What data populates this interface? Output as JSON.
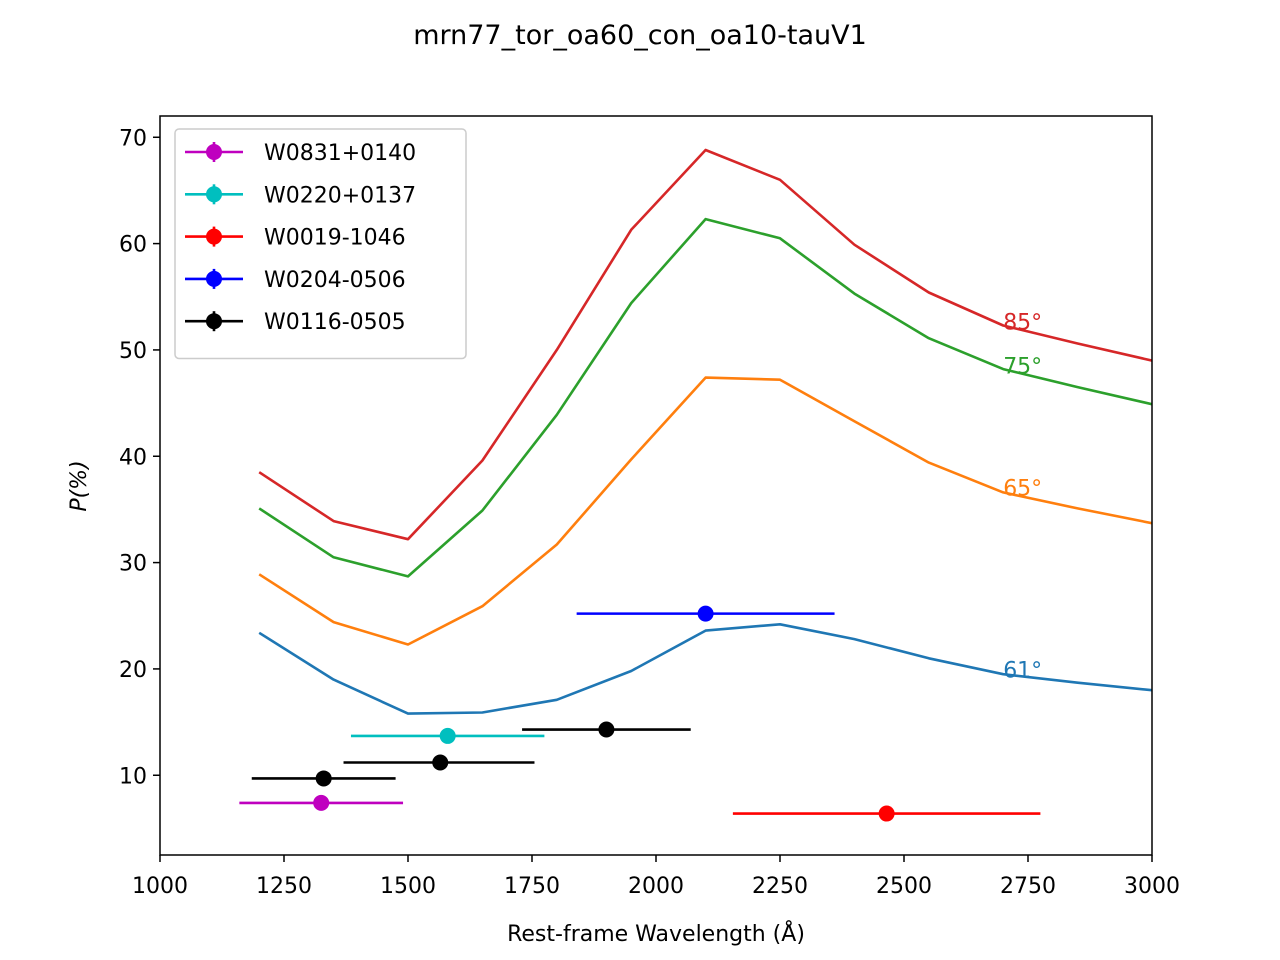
{
  "chart_data": {
    "type": "line",
    "title": "mrn77_tor_oa60_con_oa10-tauV1",
    "xlabel": "Rest-frame Wavelength (Å)",
    "ylabel": "P(%)",
    "xlim": [
      1000,
      3000
    ],
    "ylim": [
      2.5,
      72
    ],
    "xticks": [
      "1000",
      "1250",
      "1500",
      "1750",
      "2000",
      "2250",
      "2500",
      "2750",
      "3000"
    ],
    "yticks": [
      "10",
      "20",
      "30",
      "40",
      "50",
      "60",
      "70"
    ],
    "grid": false,
    "legend_position": "upper-left",
    "x": [
      1200,
      1350,
      1500,
      1650,
      1800,
      1950,
      2100,
      2250,
      2400,
      2550,
      2700,
      2850,
      3000
    ],
    "series": [
      {
        "name": "61°",
        "color": "#1f77b4",
        "values": [
          23.4,
          19.0,
          15.8,
          15.9,
          17.1,
          19.8,
          23.6,
          24.2,
          22.8,
          21.0,
          19.5,
          18.7,
          18.0
        ]
      },
      {
        "name": "65°",
        "color": "#ff7f0e",
        "values": [
          28.9,
          24.4,
          22.3,
          25.9,
          31.7,
          39.7,
          47.4,
          47.2,
          43.3,
          39.4,
          36.6,
          35.1,
          33.7
        ]
      },
      {
        "name": "75°",
        "color": "#2ca02c",
        "values": [
          35.1,
          30.5,
          28.7,
          34.9,
          43.9,
          54.4,
          62.3,
          60.5,
          55.3,
          51.1,
          48.2,
          46.5,
          44.9
        ]
      },
      {
        "name": "85°",
        "color": "#d62728",
        "values": [
          38.5,
          33.9,
          32.2,
          39.6,
          50.0,
          61.3,
          68.8,
          66.0,
          59.9,
          55.4,
          52.3,
          50.6,
          49.0
        ]
      }
    ],
    "curve_labels": [
      {
        "text": "85°",
        "x": 2700,
        "y": 51.9,
        "color": "#d62728"
      },
      {
        "text": "75°",
        "x": 2700,
        "y": 47.8,
        "color": "#2ca02c"
      },
      {
        "text": "65°",
        "x": 2700,
        "y": 36.3,
        "color": "#ff7f0e"
      },
      {
        "text": "61°",
        "x": 2700,
        "y": 19.2,
        "color": "#1f77b4"
      }
    ],
    "observations": [
      {
        "name": "W0831+0140",
        "color": "#bf00bf",
        "points": [
          {
            "x": 1325,
            "y": 7.4,
            "xmin": 1160,
            "xmax": 1490
          }
        ]
      },
      {
        "name": "W0220+0137",
        "color": "#00bfbf",
        "points": [
          {
            "x": 1580,
            "y": 13.7,
            "xmin": 1385,
            "xmax": 1775
          }
        ]
      },
      {
        "name": "W0019-1046",
        "color": "#ff0000",
        "points": [
          {
            "x": 2465,
            "y": 6.4,
            "xmin": 2155,
            "xmax": 2775
          }
        ]
      },
      {
        "name": "W0204-0506",
        "color": "#0000ff",
        "points": [
          {
            "x": 2100,
            "y": 25.2,
            "xmin": 1840,
            "xmax": 2360
          }
        ]
      },
      {
        "name": "W0116-0505",
        "color": "#000000",
        "points": [
          {
            "x": 1330,
            "y": 9.7,
            "xmin": 1185,
            "xmax": 1475
          },
          {
            "x": 1565,
            "y": 11.2,
            "xmin": 1370,
            "xmax": 1755
          },
          {
            "x": 1900,
            "y": 14.3,
            "xmin": 1730,
            "xmax": 2070
          }
        ]
      }
    ]
  }
}
